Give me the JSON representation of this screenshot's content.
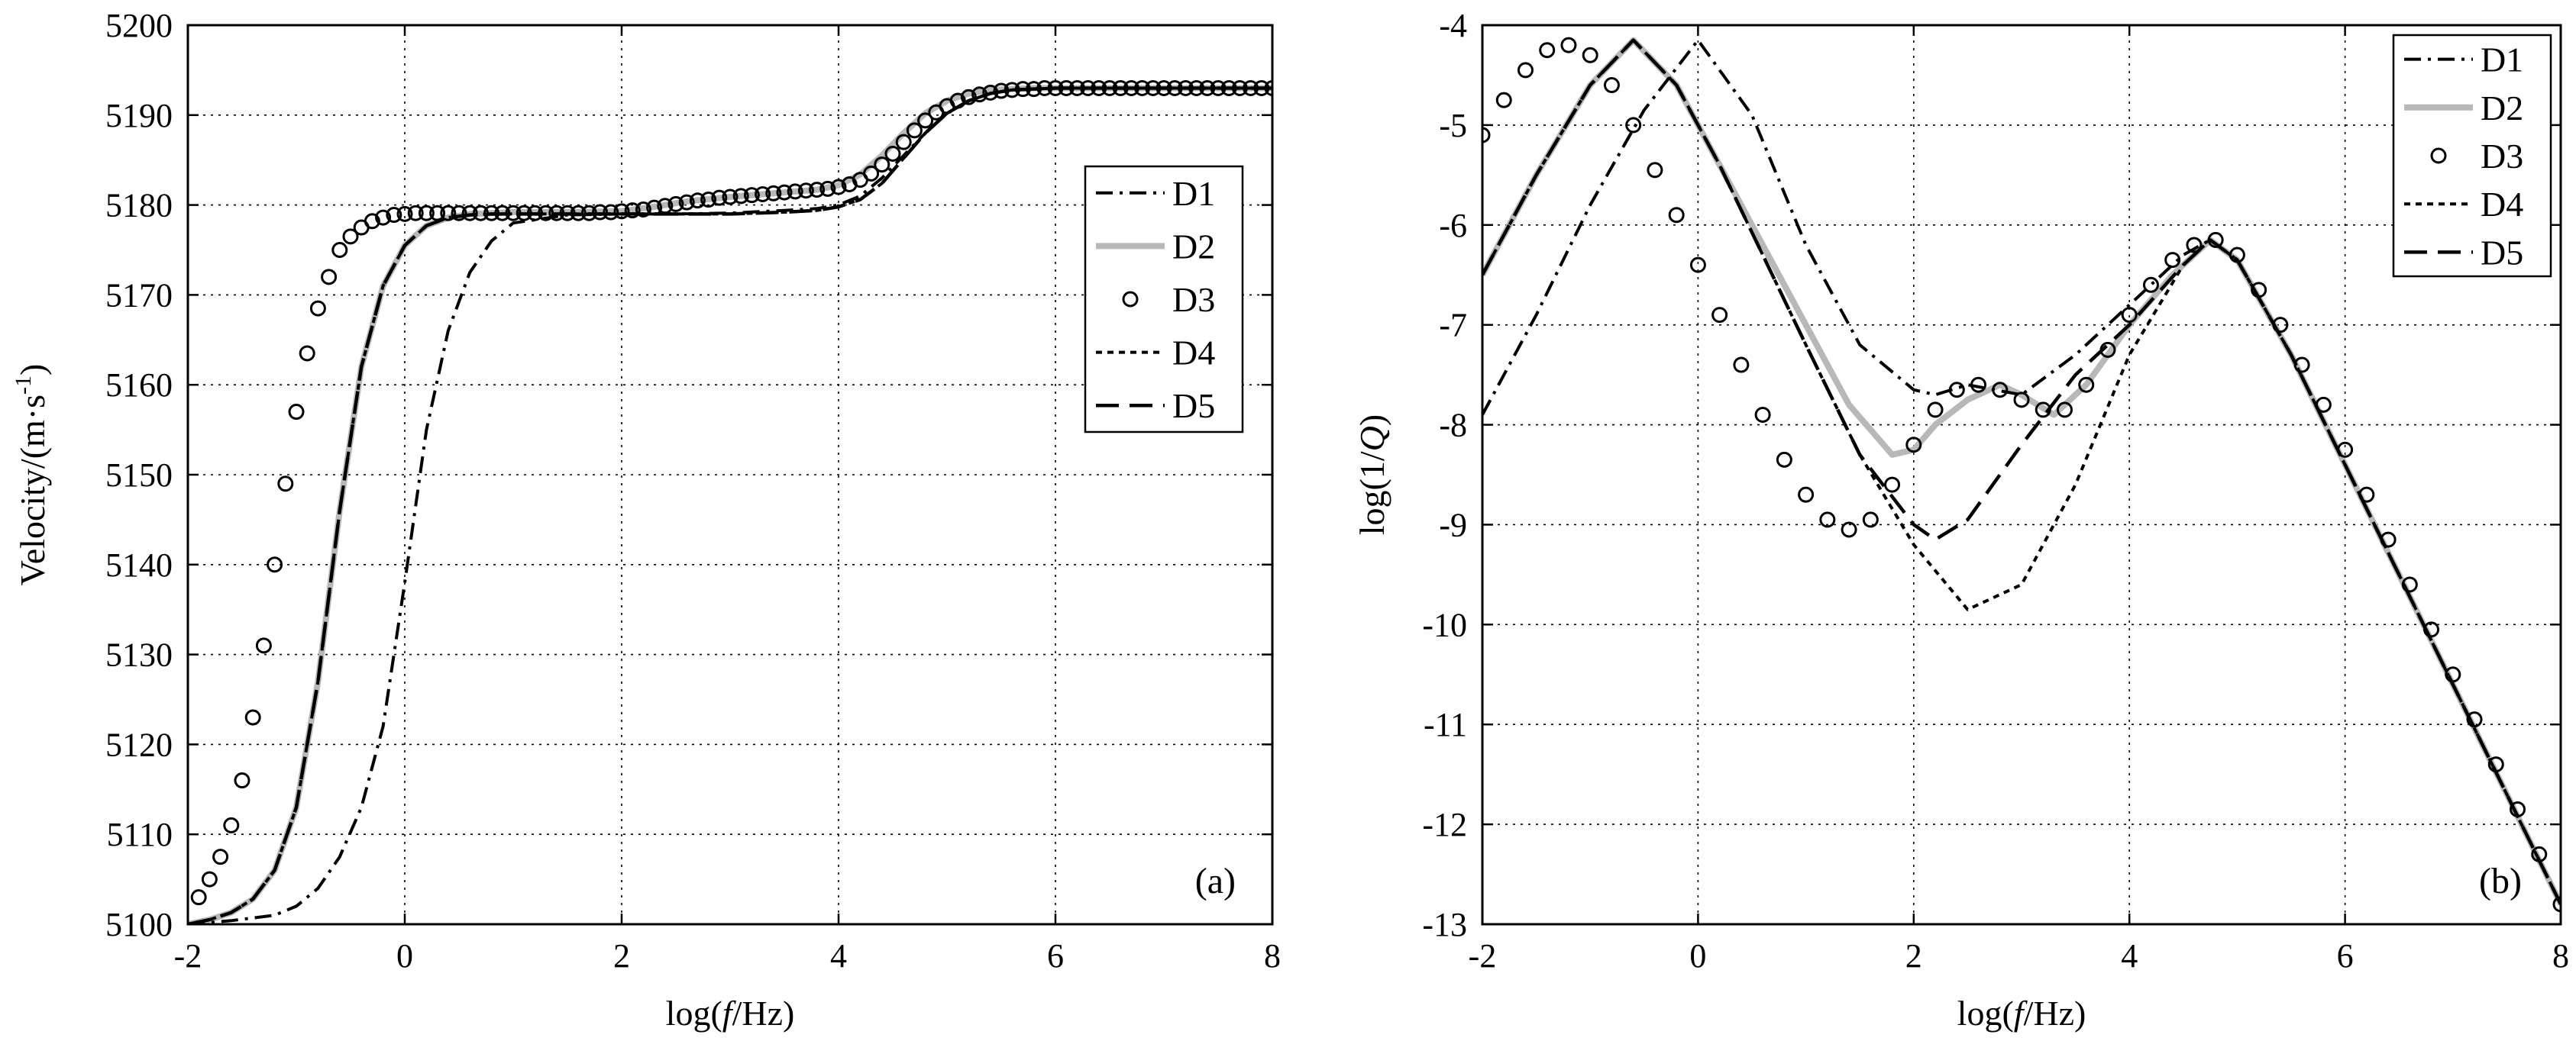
{
  "chart_data": [
    {
      "type": "line",
      "panel_label": "(a)",
      "xlabel_pre": "log(",
      "xlabel_var": "f",
      "xlabel_post": "/Hz)",
      "ylabel_main": "Velocity/(m·s",
      "ylabel_sup": "-1",
      "ylabel_close": ")",
      "xlim": [
        -2,
        8
      ],
      "ylim": [
        5100,
        5200
      ],
      "xticks": [
        "-2",
        "0",
        "2",
        "4",
        "6",
        "8"
      ],
      "yticks": [
        "5100",
        "5110",
        "5120",
        "5130",
        "5140",
        "5150",
        "5160",
        "5170",
        "5180",
        "5190",
        "5200"
      ],
      "grid": true,
      "legend_position": "upper-right",
      "series": [
        {
          "name": "D1",
          "style": "dashdot",
          "x": [
            -2,
            -1.6,
            -1.2,
            -1,
            -0.8,
            -0.6,
            -0.4,
            -0.2,
            0,
            0.2,
            0.4,
            0.6,
            0.8,
            1,
            1.5,
            2,
            2.5,
            3,
            3.5,
            3.8,
            4,
            4.2,
            4.4,
            4.6,
            4.8,
            5,
            5.2,
            5.4,
            5.6,
            5.8,
            6,
            7,
            8
          ],
          "y": [
            5100,
            5100.4,
            5101,
            5102,
            5104,
            5107.5,
            5113,
            5122,
            5138,
            5155,
            5166,
            5172.5,
            5176,
            5178,
            5178.9,
            5179,
            5179,
            5179.1,
            5179.4,
            5179.6,
            5180,
            5181,
            5183,
            5185.5,
            5188,
            5190.2,
            5191.6,
            5192.4,
            5192.8,
            5192.9,
            5193,
            5193,
            5193
          ]
        },
        {
          "name": "D2",
          "style": "solid-gray",
          "x": [
            -2,
            -1.8,
            -1.6,
            -1.4,
            -1.2,
            -1,
            -0.8,
            -0.6,
            -0.4,
            -0.2,
            0,
            0.2,
            0.4,
            0.6,
            0.8,
            1,
            1.5,
            2,
            2.3,
            2.6,
            3,
            3.5,
            3.8,
            4,
            4.2,
            4.4,
            4.6,
            4.8,
            5,
            5.2,
            5.4,
            5.6,
            5.8,
            6,
            7,
            8
          ],
          "y": [
            5100,
            5100.5,
            5101.3,
            5102.8,
            5106,
            5113,
            5127,
            5146,
            5162,
            5171,
            5175.5,
            5177.7,
            5178.6,
            5179,
            5179.1,
            5179.2,
            5179.2,
            5179.3,
            5179.8,
            5180.4,
            5180.9,
            5181.4,
            5181.7,
            5182.2,
            5183.4,
            5185.5,
            5188,
            5190.2,
            5191.6,
            5192.4,
            5192.8,
            5192.9,
            5193,
            5193,
            5193,
            5193
          ]
        },
        {
          "name": "D3",
          "style": "circles",
          "x": [
            -1.9,
            -1.8,
            -1.7,
            -1.6,
            -1.5,
            -1.4,
            -1.3,
            -1.2,
            -1.1,
            -1,
            -0.9,
            -0.8,
            -0.7,
            -0.6,
            -0.5,
            -0.4,
            -0.3,
            -0.2,
            -0.1,
            0,
            0.1,
            0.2,
            0.3,
            0.4,
            0.5,
            0.6,
            0.7,
            0.8,
            0.9,
            1,
            1.1,
            1.2,
            1.3,
            1.4,
            1.5,
            1.6,
            1.7,
            1.8,
            1.9,
            2,
            2.1,
            2.2,
            2.3,
            2.4,
            2.5,
            2.6,
            2.7,
            2.8,
            2.9,
            3,
            3.1,
            3.2,
            3.3,
            3.4,
            3.5,
            3.6,
            3.7,
            3.8,
            3.9,
            4,
            4.1,
            4.2,
            4.3,
            4.4,
            4.5,
            4.6,
            4.7,
            4.8,
            4.9,
            5,
            5.1,
            5.2,
            5.3,
            5.4,
            5.5,
            5.6,
            5.7,
            5.8,
            5.9,
            6,
            6.1,
            6.2,
            6.3,
            6.4,
            6.5,
            6.6,
            6.7,
            6.8,
            6.9,
            7,
            7.1,
            7.2,
            7.3,
            7.4,
            7.5,
            7.6,
            7.7,
            7.8,
            7.9,
            8
          ],
          "y": [
            5103,
            5105,
            5107.5,
            5111,
            5116,
            5123,
            5131,
            5140,
            5149,
            5157,
            5163.5,
            5168.5,
            5172,
            5175,
            5176.5,
            5177.5,
            5178.2,
            5178.6,
            5178.9,
            5179,
            5179.1,
            5179.1,
            5179.1,
            5179.1,
            5179.1,
            5179.1,
            5179.1,
            5179.1,
            5179.1,
            5179.1,
            5179.1,
            5179.1,
            5179.1,
            5179.1,
            5179.1,
            5179.1,
            5179.1,
            5179.2,
            5179.2,
            5179.3,
            5179.4,
            5179.5,
            5179.7,
            5179.9,
            5180.1,
            5180.3,
            5180.5,
            5180.6,
            5180.8,
            5180.9,
            5181,
            5181.1,
            5181.2,
            5181.3,
            5181.4,
            5181.5,
            5181.6,
            5181.7,
            5181.8,
            5182,
            5182.3,
            5182.8,
            5183.5,
            5184.5,
            5185.7,
            5187,
            5188.3,
            5189.4,
            5190.3,
            5191,
            5191.6,
            5192,
            5192.3,
            5192.5,
            5192.7,
            5192.8,
            5192.9,
            5192.9,
            5193,
            5193,
            5193,
            5193,
            5193,
            5193,
            5193,
            5193,
            5193,
            5193,
            5193,
            5193,
            5193,
            5193,
            5193,
            5193,
            5193,
            5193,
            5193,
            5193,
            5193,
            5193
          ]
        },
        {
          "name": "D4",
          "style": "dotted",
          "x": [
            -2,
            -1.8,
            -1.6,
            -1.4,
            -1.2,
            -1,
            -0.8,
            -0.6,
            -0.4,
            -0.2,
            0,
            0.2,
            0.4,
            0.6,
            0.8,
            1,
            1.5,
            2,
            2.5,
            3,
            3.5,
            3.8,
            4,
            4.2,
            4.4,
            4.6,
            4.8,
            5,
            5.2,
            5.4,
            5.6,
            5.8,
            6,
            7,
            8
          ],
          "y": [
            5100,
            5100.5,
            5101.3,
            5102.8,
            5106,
            5113,
            5127,
            5146,
            5162,
            5171,
            5175.5,
            5177.7,
            5178.6,
            5178.9,
            5179,
            5179,
            5179,
            5179,
            5179,
            5179,
            5179.2,
            5179.4,
            5179.8,
            5180.6,
            5182.4,
            5185.2,
            5188,
            5190.2,
            5191.6,
            5192.4,
            5192.8,
            5192.9,
            5193,
            5193,
            5193
          ]
        },
        {
          "name": "D5",
          "style": "dashed",
          "x": [
            -2,
            -1.8,
            -1.6,
            -1.4,
            -1.2,
            -1,
            -0.8,
            -0.6,
            -0.4,
            -0.2,
            0,
            0.2,
            0.4,
            0.6,
            0.8,
            1,
            1.5,
            2,
            2.5,
            3,
            3.5,
            3.8,
            4,
            4.2,
            4.4,
            4.6,
            4.8,
            5,
            5.2,
            5.4,
            5.6,
            5.8,
            6,
            7,
            8
          ],
          "y": [
            5100,
            5100.5,
            5101.3,
            5102.8,
            5106,
            5113,
            5127,
            5146,
            5162,
            5171,
            5175.5,
            5177.7,
            5178.6,
            5178.9,
            5179,
            5179,
            5179,
            5179,
            5179,
            5179,
            5179.2,
            5179.4,
            5179.8,
            5180.6,
            5182.4,
            5185.2,
            5188,
            5190.2,
            5191.6,
            5192.4,
            5192.8,
            5192.9,
            5193,
            5193,
            5193
          ]
        }
      ]
    },
    {
      "type": "line",
      "panel_label": "(b)",
      "xlabel_pre": "log(",
      "xlabel_var": "f",
      "xlabel_post": "/Hz)",
      "ylabel_pre": "log(1/",
      "ylabel_var": "Q",
      "ylabel_post": ")",
      "xlim": [
        -2,
        8
      ],
      "ylim": [
        -13,
        -4
      ],
      "xticks": [
        "-2",
        "0",
        "2",
        "4",
        "6",
        "8"
      ],
      "yticks": [
        "-13",
        "-12",
        "-11",
        "-10",
        "-9",
        "-8",
        "-7",
        "-6",
        "-5",
        "-4"
      ],
      "grid": true,
      "legend_position": "upper-right",
      "series": [
        {
          "name": "D1",
          "style": "dashdot",
          "x": [
            -2,
            -1.5,
            -1,
            -0.5,
            0,
            0.5,
            1,
            1.5,
            2,
            2.2,
            2.5,
            3,
            3.5,
            4,
            4.5,
            4.75,
            5,
            5.5,
            6,
            6.5,
            7,
            7.5,
            8
          ],
          "y": [
            -7.9,
            -6.9,
            -5.8,
            -4.85,
            -4.15,
            -4.9,
            -6.2,
            -7.2,
            -7.65,
            -7.7,
            -7.6,
            -7.7,
            -7.3,
            -6.8,
            -6.3,
            -6.15,
            -6.35,
            -7.3,
            -8.4,
            -9.5,
            -10.6,
            -11.7,
            -12.8
          ]
        },
        {
          "name": "D2",
          "style": "solid-gray",
          "x": [
            -2,
            -1.5,
            -1,
            -0.6,
            -0.2,
            0.2,
            0.6,
            1,
            1.4,
            1.8,
            2,
            2.2,
            2.5,
            2.8,
            3,
            3.3,
            3.6,
            4,
            4.4,
            4.75,
            5,
            5.5,
            6,
            6.5,
            7,
            7.5,
            8
          ],
          "y": [
            -6.5,
            -5.5,
            -4.6,
            -4.15,
            -4.6,
            -5.4,
            -6.2,
            -7.0,
            -7.8,
            -8.3,
            -8.25,
            -8.0,
            -7.75,
            -7.6,
            -7.7,
            -7.9,
            -7.6,
            -7.0,
            -6.5,
            -6.15,
            -6.35,
            -7.3,
            -8.4,
            -9.5,
            -10.6,
            -11.7,
            -12.8
          ]
        },
        {
          "name": "D3",
          "style": "circles",
          "x": [
            -2,
            -1.8,
            -1.6,
            -1.4,
            -1.2,
            -1,
            -0.8,
            -0.6,
            -0.4,
            -0.2,
            0,
            0.2,
            0.4,
            0.6,
            0.8,
            1,
            1.2,
            1.4,
            1.6,
            1.8,
            2,
            2.2,
            2.4,
            2.6,
            2.8,
            3,
            3.2,
            3.4,
            3.6,
            3.8,
            4,
            4.2,
            4.4,
            4.6,
            4.8,
            5,
            5.2,
            5.4,
            5.6,
            5.8,
            6,
            6.2,
            6.4,
            6.6,
            6.8,
            7,
            7.2,
            7.4,
            7.6,
            7.8,
            8
          ],
          "y": [
            -5.1,
            -4.75,
            -4.45,
            -4.25,
            -4.2,
            -4.3,
            -4.6,
            -5.0,
            -5.45,
            -5.9,
            -6.4,
            -6.9,
            -7.4,
            -7.9,
            -8.35,
            -8.7,
            -8.95,
            -9.05,
            -8.95,
            -8.6,
            -8.2,
            -7.85,
            -7.65,
            -7.6,
            -7.65,
            -7.75,
            -7.85,
            -7.85,
            -7.6,
            -7.25,
            -6.9,
            -6.6,
            -6.35,
            -6.2,
            -6.15,
            -6.3,
            -6.65,
            -7.0,
            -7.4,
            -7.8,
            -8.25,
            -8.7,
            -9.15,
            -9.6,
            -10.05,
            -10.5,
            -10.95,
            -11.4,
            -11.85,
            -12.3,
            -12.8
          ]
        },
        {
          "name": "D4",
          "style": "dotted",
          "x": [
            -2,
            -1.5,
            -1,
            -0.6,
            -0.2,
            0.2,
            0.6,
            1,
            1.5,
            2,
            2.5,
            3,
            3.5,
            4,
            4.5,
            4.75,
            5,
            5.5,
            6,
            6.5,
            7,
            7.5,
            8
          ],
          "y": [
            -6.5,
            -5.5,
            -4.6,
            -4.15,
            -4.6,
            -5.4,
            -6.3,
            -7.2,
            -8.3,
            -9.2,
            -9.85,
            -9.6,
            -8.6,
            -7.3,
            -6.4,
            -6.15,
            -6.35,
            -7.3,
            -8.4,
            -9.5,
            -10.6,
            -11.7,
            -12.8
          ]
        },
        {
          "name": "D5",
          "style": "dashed",
          "x": [
            -2,
            -1.5,
            -1,
            -0.6,
            -0.2,
            0.2,
            0.6,
            1,
            1.5,
            2,
            2.2,
            2.5,
            3,
            3.5,
            4,
            4.5,
            4.75,
            5,
            5.5,
            6,
            6.5,
            7,
            7.5,
            8
          ],
          "y": [
            -6.5,
            -5.5,
            -4.6,
            -4.15,
            -4.6,
            -5.4,
            -6.3,
            -7.2,
            -8.3,
            -9.0,
            -9.15,
            -8.95,
            -8.2,
            -7.5,
            -7.0,
            -6.4,
            -6.15,
            -6.35,
            -7.3,
            -8.4,
            -9.5,
            -10.6,
            -11.7,
            -12.8
          ]
        }
      ]
    }
  ]
}
